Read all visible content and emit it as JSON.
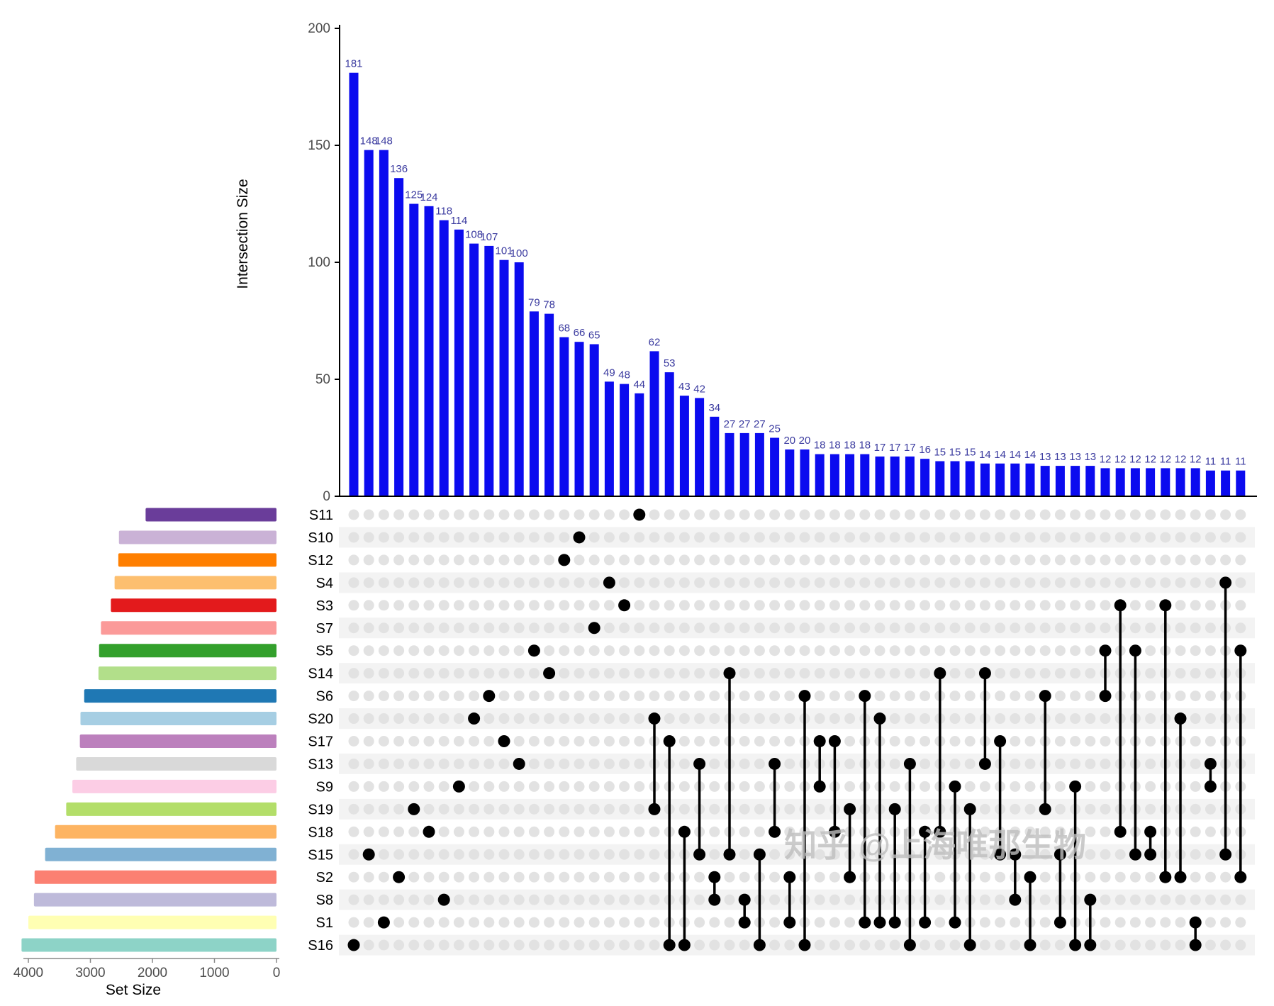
{
  "watermark": {
    "text": "知乎 @上海唯那生物",
    "color": "#BFBFBF"
  },
  "chart_data": {
    "type": "upset",
    "title": "",
    "intersection_axis": {
      "label": "Intersection Size",
      "ticks": [
        0,
        50,
        100,
        150,
        200
      ],
      "max": 200
    },
    "set_size_axis": {
      "label": "Set Size",
      "ticks": [
        4000,
        3000,
        2000,
        1000,
        0
      ],
      "max": 4000
    },
    "legend_position": "none",
    "grid": false,
    "sets": [
      {
        "id": "S11",
        "color": "#6A3D9A",
        "size": 2110
      },
      {
        "id": "S10",
        "color": "#CAB2D6",
        "size": 2540
      },
      {
        "id": "S12",
        "color": "#FF7F00",
        "size": 2550
      },
      {
        "id": "S4",
        "color": "#FDBF6F",
        "size": 2610
      },
      {
        "id": "S3",
        "color": "#E31A1C",
        "size": 2670
      },
      {
        "id": "S7",
        "color": "#FB9A99",
        "size": 2830
      },
      {
        "id": "S5",
        "color": "#33A02C",
        "size": 2860
      },
      {
        "id": "S14",
        "color": "#B2DF8A",
        "size": 2870
      },
      {
        "id": "S6",
        "color": "#1F78B4",
        "size": 3100
      },
      {
        "id": "S20",
        "color": "#A6CEE3",
        "size": 3160
      },
      {
        "id": "S17",
        "color": "#BC80BD",
        "size": 3170
      },
      {
        "id": "S13",
        "color": "#D9D9D9",
        "size": 3230
      },
      {
        "id": "S9",
        "color": "#FCCDE5",
        "size": 3290
      },
      {
        "id": "S19",
        "color": "#B3DE69",
        "size": 3390
      },
      {
        "id": "S18",
        "color": "#FDB462",
        "size": 3570
      },
      {
        "id": "S15",
        "color": "#80B1D3",
        "size": 3730
      },
      {
        "id": "S2",
        "color": "#FB8072",
        "size": 3900
      },
      {
        "id": "S8",
        "color": "#BEBADA",
        "size": 3910
      },
      {
        "id": "S1",
        "color": "#FFFFB3",
        "size": 4000
      },
      {
        "id": "S16",
        "color": "#8DD3C7",
        "size": 4110
      }
    ],
    "intersections": [
      {
        "size": 181,
        "sets": [
          "S16"
        ]
      },
      {
        "size": 148,
        "sets": [
          "S15"
        ]
      },
      {
        "size": 148,
        "sets": [
          "S1"
        ]
      },
      {
        "size": 136,
        "sets": [
          "S2"
        ]
      },
      {
        "size": 125,
        "sets": [
          "S19"
        ]
      },
      {
        "size": 124,
        "sets": [
          "S18"
        ]
      },
      {
        "size": 118,
        "sets": [
          "S8"
        ]
      },
      {
        "size": 114,
        "sets": [
          "S9"
        ]
      },
      {
        "size": 108,
        "sets": [
          "S20"
        ]
      },
      {
        "size": 107,
        "sets": [
          "S6"
        ]
      },
      {
        "size": 101,
        "sets": [
          "S17"
        ]
      },
      {
        "size": 100,
        "sets": [
          "S13"
        ]
      },
      {
        "size": 79,
        "sets": [
          "S5"
        ]
      },
      {
        "size": 78,
        "sets": [
          "S14"
        ]
      },
      {
        "size": 68,
        "sets": [
          "S12"
        ]
      },
      {
        "size": 66,
        "sets": [
          "S10"
        ]
      },
      {
        "size": 65,
        "sets": [
          "S7"
        ]
      },
      {
        "size": 49,
        "sets": [
          "S4"
        ]
      },
      {
        "size": 48,
        "sets": [
          "S3"
        ]
      },
      {
        "size": 44,
        "sets": [
          "S11"
        ]
      },
      {
        "size": 62,
        "sets": [
          "S20",
          "S19"
        ]
      },
      {
        "size": 53,
        "sets": [
          "S17",
          "S16"
        ]
      },
      {
        "size": 43,
        "sets": [
          "S18",
          "S16"
        ]
      },
      {
        "size": 42,
        "sets": [
          "S13",
          "S15"
        ]
      },
      {
        "size": 34,
        "sets": [
          "S2",
          "S8"
        ]
      },
      {
        "size": 27,
        "sets": [
          "S14",
          "S15"
        ]
      },
      {
        "size": 27,
        "sets": [
          "S8",
          "S1"
        ]
      },
      {
        "size": 27,
        "sets": [
          "S15",
          "S16"
        ]
      },
      {
        "size": 25,
        "sets": [
          "S13",
          "S18"
        ]
      },
      {
        "size": 20,
        "sets": [
          "S2",
          "S1"
        ]
      },
      {
        "size": 20,
        "sets": [
          "S6",
          "S16"
        ]
      },
      {
        "size": 18,
        "sets": [
          "S17",
          "S9"
        ]
      },
      {
        "size": 18,
        "sets": [
          "S17",
          "S18"
        ]
      },
      {
        "size": 18,
        "sets": [
          "S19",
          "S2"
        ]
      },
      {
        "size": 18,
        "sets": [
          "S6",
          "S1"
        ]
      },
      {
        "size": 17,
        "sets": [
          "S20",
          "S1"
        ]
      },
      {
        "size": 17,
        "sets": [
          "S19",
          "S1"
        ]
      },
      {
        "size": 17,
        "sets": [
          "S13",
          "S16"
        ]
      },
      {
        "size": 16,
        "sets": [
          "S18",
          "S1"
        ]
      },
      {
        "size": 15,
        "sets": [
          "S14",
          "S18"
        ]
      },
      {
        "size": 15,
        "sets": [
          "S9",
          "S1"
        ]
      },
      {
        "size": 15,
        "sets": [
          "S19",
          "S16"
        ]
      },
      {
        "size": 14,
        "sets": [
          "S14",
          "S13"
        ]
      },
      {
        "size": 14,
        "sets": [
          "S17",
          "S15"
        ]
      },
      {
        "size": 14,
        "sets": [
          "S15",
          "S8"
        ]
      },
      {
        "size": 14,
        "sets": [
          "S2",
          "S16"
        ]
      },
      {
        "size": 13,
        "sets": [
          "S6",
          "S19"
        ]
      },
      {
        "size": 13,
        "sets": [
          "S15",
          "S1"
        ]
      },
      {
        "size": 13,
        "sets": [
          "S9",
          "S16"
        ]
      },
      {
        "size": 13,
        "sets": [
          "S8",
          "S16"
        ]
      },
      {
        "size": 12,
        "sets": [
          "S5",
          "S6"
        ]
      },
      {
        "size": 12,
        "sets": [
          "S3",
          "S18"
        ]
      },
      {
        "size": 12,
        "sets": [
          "S5",
          "S15"
        ]
      },
      {
        "size": 12,
        "sets": [
          "S18",
          "S15"
        ]
      },
      {
        "size": 12,
        "sets": [
          "S3",
          "S2"
        ]
      },
      {
        "size": 12,
        "sets": [
          "S20",
          "S2"
        ]
      },
      {
        "size": 12,
        "sets": [
          "S1",
          "S16"
        ]
      },
      {
        "size": 11,
        "sets": [
          "S13",
          "S9"
        ]
      },
      {
        "size": 11,
        "sets": [
          "S4",
          "S15"
        ]
      },
      {
        "size": 11,
        "sets": [
          "S5",
          "S2"
        ]
      }
    ],
    "style": {
      "bar_color": "#0B0BEF",
      "value_label_color": "#3A3A9F",
      "inactive_dot_color": "#E2E2E2",
      "active_dot_color": "#000000",
      "row_band_color": "#F3F3F3",
      "axis_color": "#000000",
      "tick_label_color": "#4D4D4D"
    }
  }
}
